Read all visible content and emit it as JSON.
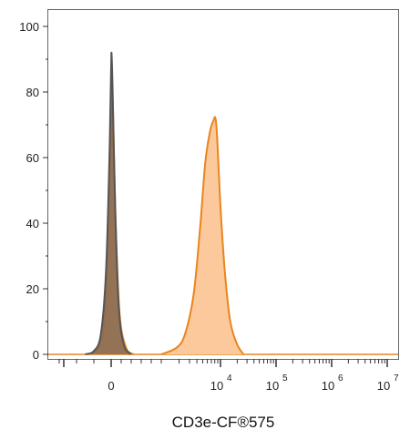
{
  "chart_data": {
    "type": "area",
    "title": "",
    "xlabel": "CD3e-CF®575",
    "ylabel": "",
    "x_scale": "biexponential",
    "x_ticks": [
      {
        "label": "0",
        "exp": ""
      },
      {
        "label": "10",
        "exp": "4"
      },
      {
        "label": "10",
        "exp": "5"
      },
      {
        "label": "10",
        "exp": "6"
      },
      {
        "label": "10",
        "exp": "7"
      }
    ],
    "y_ticks": [
      "0",
      "20",
      "40",
      "60",
      "80",
      "100"
    ],
    "ylim": [
      0,
      105
    ],
    "grid": false,
    "legend": "none",
    "series": [
      {
        "role": "isotype-control",
        "fill": "#8a6a52",
        "stroke": "#555555",
        "points": [
          [
            "-300",
            0
          ],
          [
            "-200",
            1
          ],
          [
            "-120",
            6
          ],
          [
            "-60",
            25
          ],
          [
            "-20",
            60
          ],
          [
            "0",
            88
          ],
          [
            "10",
            91
          ],
          [
            "30",
            80
          ],
          [
            "80",
            45
          ],
          [
            "150",
            15
          ],
          [
            "250",
            3
          ],
          [
            "400",
            0
          ]
        ]
      },
      {
        "role": "unstained",
        "fill": "#f5b27a",
        "stroke": "#e8851e",
        "points": [
          [
            "-250",
            0
          ],
          [
            "-150",
            2
          ],
          [
            "-80",
            10
          ],
          [
            "-30",
            40
          ],
          [
            "0",
            75
          ],
          [
            "15",
            82
          ],
          [
            "40",
            72
          ],
          [
            "90",
            40
          ],
          [
            "170",
            12
          ],
          [
            "300",
            2
          ],
          [
            "450",
            0
          ]
        ]
      },
      {
        "role": "stained",
        "fill": "#fcc99c",
        "stroke": "#e8851e",
        "points": [
          [
            "1000",
            0
          ],
          [
            "1800",
            2
          ],
          [
            "2500",
            6
          ],
          [
            "3500",
            18
          ],
          [
            "4500",
            38
          ],
          [
            "5500",
            58
          ],
          [
            "6500",
            67
          ],
          [
            "7500",
            71
          ],
          [
            "8500",
            70
          ],
          [
            "10000",
            45
          ],
          [
            "12000",
            25
          ],
          [
            "15000",
            10
          ],
          [
            "20000",
            3
          ],
          [
            "26000",
            0
          ]
        ]
      }
    ]
  }
}
